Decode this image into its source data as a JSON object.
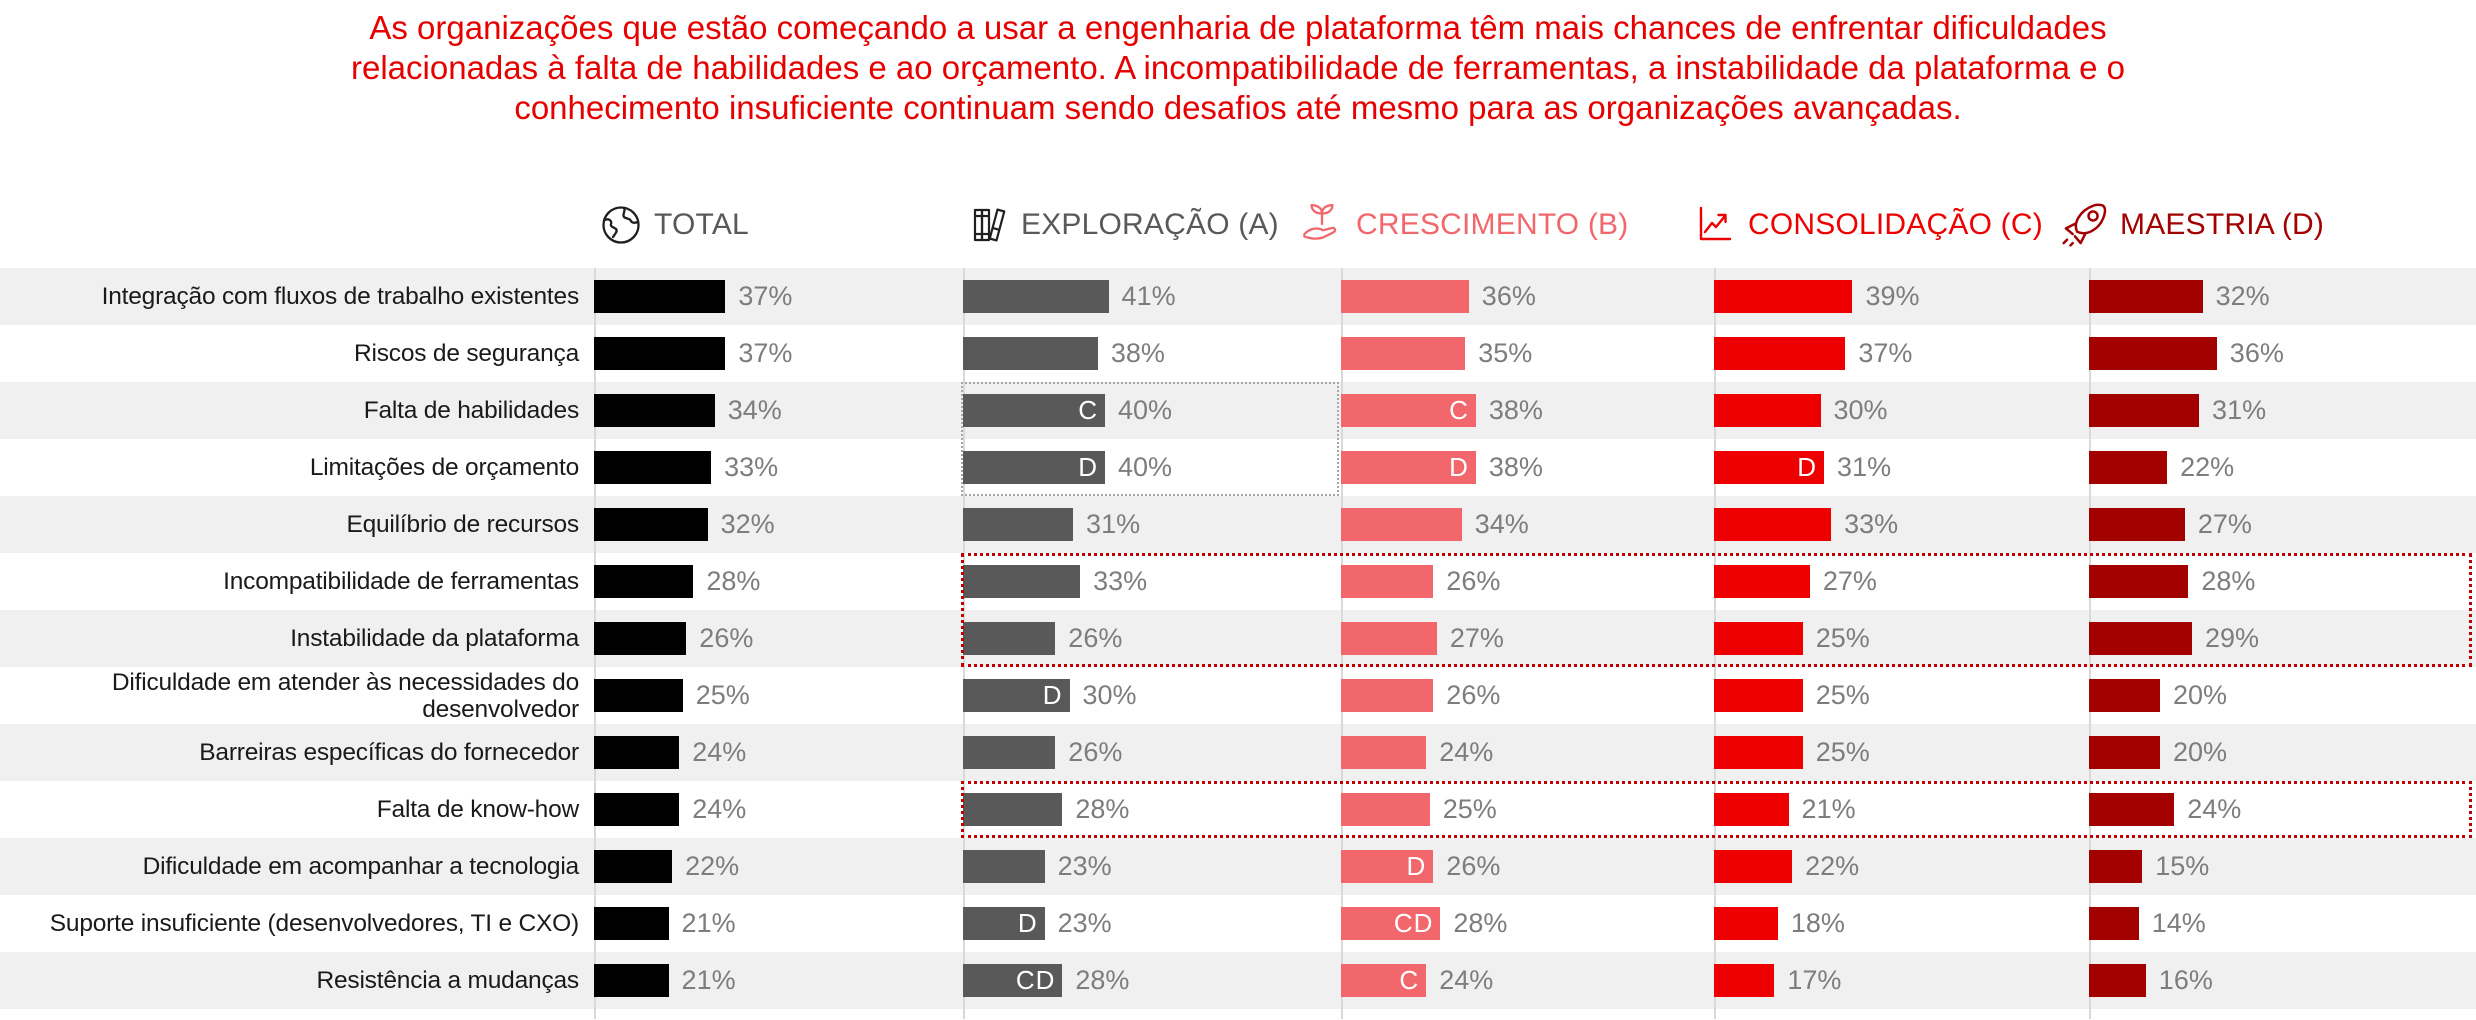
{
  "title": {
    "lines": [
      "As organizações que estão começando a usar a engenharia de plataforma têm mais chances de enfrentar dificuldades",
      "relacionadas à falta de habilidades e ao orçamento. A incompatibilidade de ferramentas, a instabilidade da plataforma e o",
      "conhecimento insuficiente continuam sendo desafios até mesmo para as organizações avançadas."
    ],
    "color": "#e60000"
  },
  "palette": {
    "row_stripe": "#f0f0f0",
    "axis_line": "#d9d9d9",
    "value_label": "#7d7d7d",
    "row_label": "#1a1a1a",
    "gray_box_border": "#a6a6a6",
    "red_box_border": "#c00000"
  },
  "columns": [
    {
      "label": "TOTAL",
      "icon": "globe-icon",
      "bar_color": "#000000",
      "label_color": "#595959",
      "icon_color": "#1f1f1f"
    },
    {
      "label": "EXPLORAÇÃO (A)",
      "icon": "books-icon",
      "bar_color": "#595959",
      "label_color": "#595959",
      "icon_color": "#1f1f1f"
    },
    {
      "label": "CRESCIMENTO (B)",
      "icon": "sprout-hand-icon",
      "bar_color": "#f1676c",
      "label_color": "#f1676c",
      "icon_color": "#f1676c"
    },
    {
      "label": "CONSOLIDAÇÃO (C)",
      "icon": "line-chart-icon",
      "bar_color": "#ee0000",
      "label_color": "#ee0000",
      "icon_color": "#ee0000"
    },
    {
      "label": "MAESTRIA (D)",
      "icon": "rocket-icon",
      "bar_color": "#a30000",
      "label_color": "#a30000",
      "icon_color": "#a30000"
    }
  ],
  "rows": [
    {
      "label": "Integração com fluxos de trabalho existentes",
      "values": [
        {
          "pct": 37
        },
        {
          "pct": 41
        },
        {
          "pct": 36
        },
        {
          "pct": 39
        },
        {
          "pct": 32
        }
      ]
    },
    {
      "label": "Riscos de segurança",
      "values": [
        {
          "pct": 37
        },
        {
          "pct": 38
        },
        {
          "pct": 35
        },
        {
          "pct": 37
        },
        {
          "pct": 36
        }
      ]
    },
    {
      "label": "Falta de habilidades",
      "values": [
        {
          "pct": 34
        },
        {
          "pct": 40,
          "tag": "C"
        },
        {
          "pct": 38,
          "tag": "C"
        },
        {
          "pct": 30
        },
        {
          "pct": 31
        }
      ]
    },
    {
      "label": "Limitações de orçamento",
      "values": [
        {
          "pct": 33
        },
        {
          "pct": 40,
          "tag": "D"
        },
        {
          "pct": 38,
          "tag": "D"
        },
        {
          "pct": 31,
          "tag": "D"
        },
        {
          "pct": 22
        }
      ]
    },
    {
      "label": "Equilíbrio de recursos",
      "values": [
        {
          "pct": 32
        },
        {
          "pct": 31
        },
        {
          "pct": 34
        },
        {
          "pct": 33
        },
        {
          "pct": 27
        }
      ]
    },
    {
      "label": "Incompatibilidade de ferramentas",
      "values": [
        {
          "pct": 28
        },
        {
          "pct": 33
        },
        {
          "pct": 26
        },
        {
          "pct": 27
        },
        {
          "pct": 28
        }
      ]
    },
    {
      "label": "Instabilidade da plataforma",
      "values": [
        {
          "pct": 26
        },
        {
          "pct": 26
        },
        {
          "pct": 27
        },
        {
          "pct": 25
        },
        {
          "pct": 29
        }
      ]
    },
    {
      "label": "Dificuldade em atender às necessidades do desenvolvedor",
      "values": [
        {
          "pct": 25
        },
        {
          "pct": 30,
          "tag": "D"
        },
        {
          "pct": 26
        },
        {
          "pct": 25
        },
        {
          "pct": 20
        }
      ]
    },
    {
      "label": "Barreiras específicas do fornecedor",
      "values": [
        {
          "pct": 24
        },
        {
          "pct": 26
        },
        {
          "pct": 24
        },
        {
          "pct": 25
        },
        {
          "pct": 20
        }
      ]
    },
    {
      "label": "Falta de know-how",
      "values": [
        {
          "pct": 24
        },
        {
          "pct": 28
        },
        {
          "pct": 25
        },
        {
          "pct": 21
        },
        {
          "pct": 24
        }
      ]
    },
    {
      "label": "Dificuldade em acompanhar a tecnologia",
      "values": [
        {
          "pct": 22
        },
        {
          "pct": 23
        },
        {
          "pct": 26,
          "tag": "D"
        },
        {
          "pct": 22
        },
        {
          "pct": 15
        }
      ]
    },
    {
      "label": "Suporte insuficiente (desenvolvedores, TI e CXO)",
      "values": [
        {
          "pct": 21
        },
        {
          "pct": 23,
          "tag": "D"
        },
        {
          "pct": 28,
          "tag": "CD"
        },
        {
          "pct": 18
        },
        {
          "pct": 14
        }
      ]
    },
    {
      "label": "Resistência a mudanças",
      "values": [
        {
          "pct": 21
        },
        {
          "pct": 28,
          "tag": "CD"
        },
        {
          "pct": 24,
          "tag": "C"
        },
        {
          "pct": 17
        },
        {
          "pct": 16
        }
      ]
    }
  ],
  "highlight_boxes": [
    {
      "style": "gray-dotted",
      "columns": [
        "EXPLORAÇÃO (A)"
      ],
      "rows": [
        "Falta de habilidades",
        "Limitações de orçamento"
      ]
    },
    {
      "style": "red-dotted",
      "columns": [
        "EXPLORAÇÃO (A)",
        "CRESCIMENTO (B)",
        "CONSOLIDAÇÃO (C)",
        "MAESTRIA (D)"
      ],
      "rows": [
        "Incompatibilidade de ferramentas",
        "Instabilidade da plataforma"
      ]
    },
    {
      "style": "red-dotted",
      "columns": [
        "EXPLORAÇÃO (A)",
        "CRESCIMENTO (B)",
        "CONSOLIDAÇÃO (C)",
        "MAESTRIA (D)"
      ],
      "rows": [
        "Falta de know-how"
      ]
    }
  ],
  "chart_data": {
    "type": "bar",
    "orientation": "horizontal",
    "unit": "%",
    "value_labels": true,
    "xlim": [
      0,
      45
    ],
    "categories": [
      "Integração com fluxos de trabalho existentes",
      "Riscos de segurança",
      "Falta de habilidades",
      "Limitações de orçamento",
      "Equilíbrio de recursos",
      "Incompatibilidade de ferramentas",
      "Instabilidade da plataforma",
      "Dificuldade em atender às necessidades do desenvolvedor",
      "Barreiras específicas do fornecedor",
      "Falta de know-how",
      "Dificuldade em acompanhar a tecnologia",
      "Suporte insuficiente (desenvolvedores, TI e CXO)",
      "Resistência a mudanças"
    ],
    "series": [
      {
        "name": "TOTAL",
        "color": "#000000",
        "values": [
          37,
          37,
          34,
          33,
          32,
          28,
          26,
          25,
          24,
          24,
          22,
          21,
          21
        ]
      },
      {
        "name": "EXPLORAÇÃO (A)",
        "color": "#595959",
        "values": [
          41,
          38,
          40,
          40,
          31,
          33,
          26,
          30,
          26,
          28,
          23,
          23,
          28
        ]
      },
      {
        "name": "CRESCIMENTO (B)",
        "color": "#f1676c",
        "values": [
          36,
          35,
          38,
          38,
          34,
          26,
          27,
          26,
          24,
          25,
          26,
          28,
          24
        ]
      },
      {
        "name": "CONSOLIDAÇÃO (C)",
        "color": "#ee0000",
        "values": [
          39,
          37,
          30,
          31,
          33,
          27,
          25,
          25,
          25,
          21,
          22,
          18,
          17
        ]
      },
      {
        "name": "MAESTRIA (D)",
        "color": "#a30000",
        "values": [
          32,
          36,
          31,
          22,
          27,
          28,
          29,
          20,
          20,
          24,
          15,
          14,
          16
        ]
      }
    ],
    "significance_tags": [
      {
        "category": "Falta de habilidades",
        "series": "EXPLORAÇÃO (A)",
        "tag": "C"
      },
      {
        "category": "Falta de habilidades",
        "series": "CRESCIMENTO (B)",
        "tag": "C"
      },
      {
        "category": "Limitações de orçamento",
        "series": "EXPLORAÇÃO (A)",
        "tag": "D"
      },
      {
        "category": "Limitações de orçamento",
        "series": "CRESCIMENTO (B)",
        "tag": "D"
      },
      {
        "category": "Limitações de orçamento",
        "series": "CONSOLIDAÇÃO (C)",
        "tag": "D"
      },
      {
        "category": "Dificuldade em atender às necessidades do desenvolvedor",
        "series": "EXPLORAÇÃO (A)",
        "tag": "D"
      },
      {
        "category": "Dificuldade em acompanhar a tecnologia",
        "series": "CRESCIMENTO (B)",
        "tag": "D"
      },
      {
        "category": "Suporte insuficiente (desenvolvedores, TI e CXO)",
        "series": "EXPLORAÇÃO (A)",
        "tag": "D"
      },
      {
        "category": "Suporte insuficiente (desenvolvedores, TI e CXO)",
        "series": "CRESCIMENTO (B)",
        "tag": "CD"
      },
      {
        "category": "Resistência a mudanças",
        "series": "EXPLORAÇÃO (A)",
        "tag": "CD"
      },
      {
        "category": "Resistência a mudanças",
        "series": "CRESCIMENTO (B)",
        "tag": "C"
      }
    ]
  }
}
